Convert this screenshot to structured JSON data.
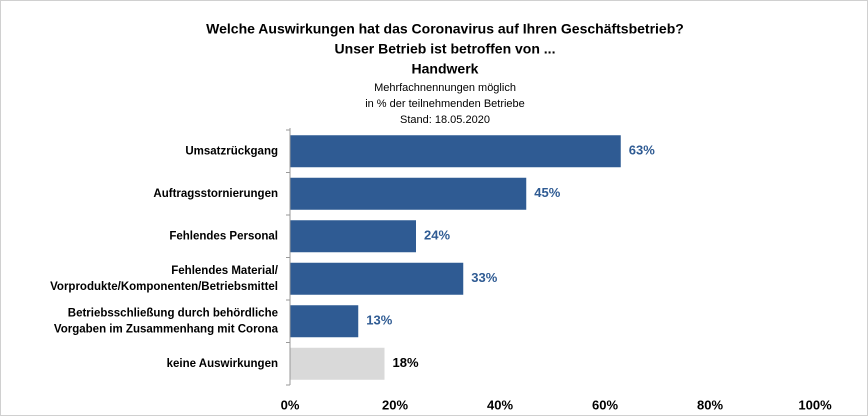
{
  "chart_data": {
    "type": "barh",
    "title": [
      "Welche Auswirkungen hat das Coronavirus auf Ihren Geschäftsbetrieb?",
      "Unser Betrieb ist betroffen von ...",
      "Handwerk"
    ],
    "subtitle": [
      "Mehrfachnennungen möglich",
      "in % der teilnehmenden Betriebe",
      "Stand:  18.05.2020"
    ],
    "categories": [
      [
        "Umsatzrückgang"
      ],
      [
        "Auftragsstornierungen"
      ],
      [
        "Fehlendes Personal"
      ],
      [
        "Fehlendes Material/",
        "Vorprodukte/Komponenten/Betriebsmittel"
      ],
      [
        "Betriebsschließung durch behördliche",
        "Vorgaben im Zusammenhang mit Corona"
      ],
      [
        "keine Auswirkungen"
      ]
    ],
    "values": [
      63,
      45,
      24,
      33,
      13,
      18
    ],
    "value_labels": [
      "63%",
      "45%",
      "24%",
      "33%",
      "13%",
      "18%"
    ],
    "colors": [
      "#2f5b93",
      "#2f5b93",
      "#2f5b93",
      "#2f5b93",
      "#2f5b93",
      "#d9d9d9"
    ],
    "label_colors": [
      "#2f5b93",
      "#2f5b93",
      "#2f5b93",
      "#2f5b93",
      "#2f5b93",
      "#000000"
    ],
    "xlim": [
      0,
      100
    ],
    "xticks": [
      {
        "value": 0,
        "label": "0%"
      },
      {
        "value": 20,
        "label": "20%"
      },
      {
        "value": 40,
        "label": "40%"
      },
      {
        "value": 60,
        "label": "60%"
      },
      {
        "value": 80,
        "label": "80%"
      },
      {
        "value": 100,
        "label": "100%"
      }
    ]
  }
}
